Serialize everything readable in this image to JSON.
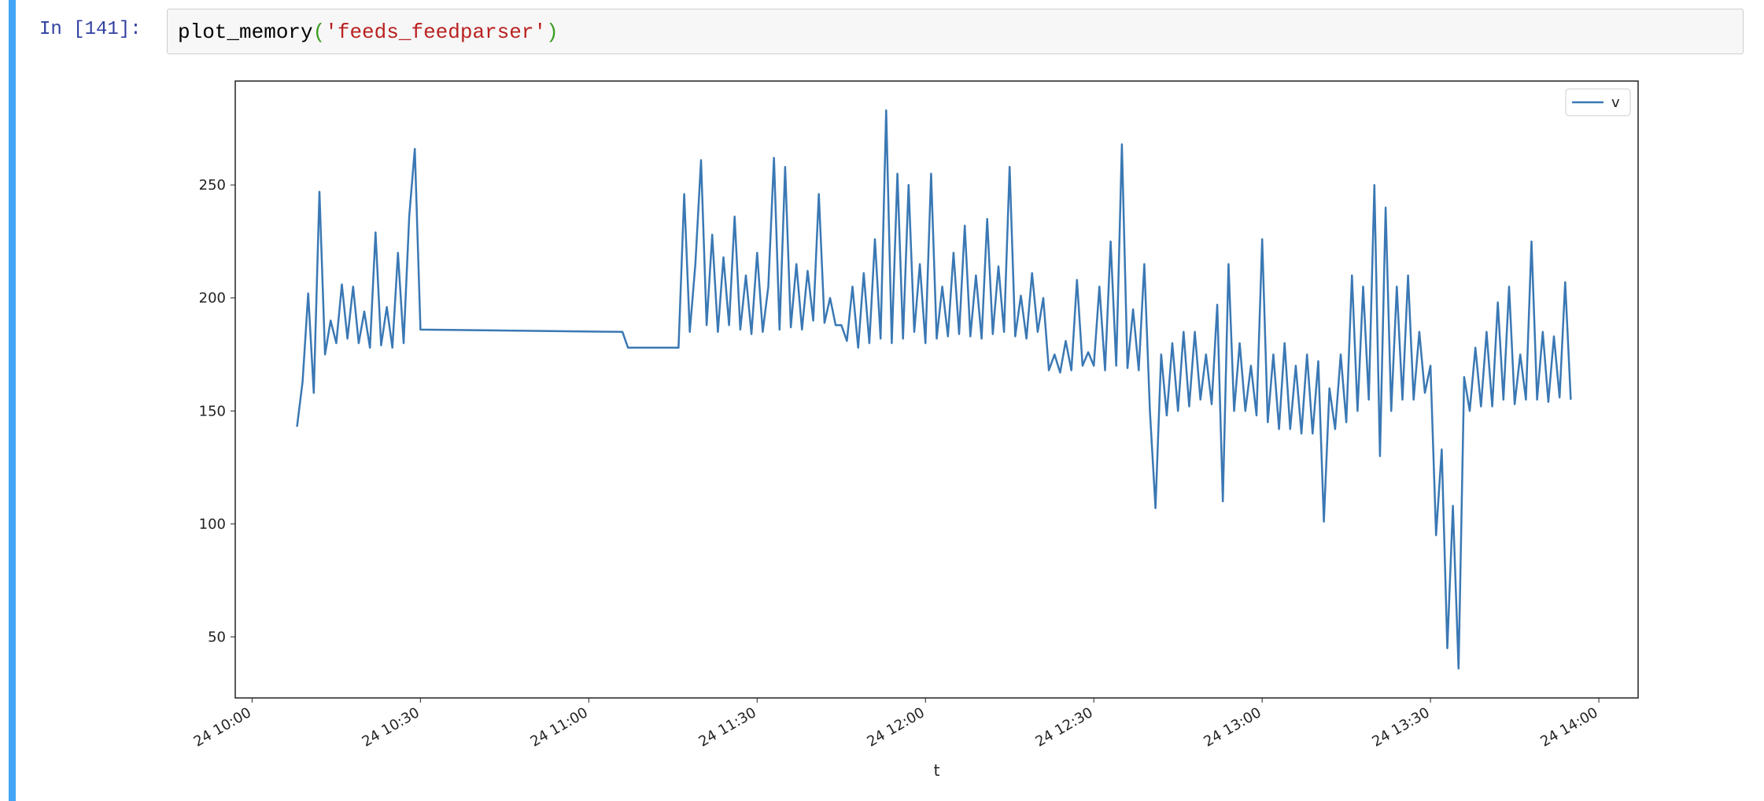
{
  "cell": {
    "prompt": "In [141]:",
    "code": [
      "plot_memory",
      "(",
      "'feeds_feedparser'",
      ")"
    ]
  },
  "chart_data": {
    "type": "line",
    "xlabel": "t",
    "x": [
      "24 10:08",
      "24 10:09",
      "24 10:10",
      "24 10:11",
      "24 10:12",
      "24 10:13",
      "24 10:14",
      "24 10:15",
      "24 10:16",
      "24 10:17",
      "24 10:18",
      "24 10:19",
      "24 10:20",
      "24 10:21",
      "24 10:22",
      "24 10:23",
      "24 10:24",
      "24 10:25",
      "24 10:26",
      "24 10:27",
      "24 10:28",
      "24 10:29",
      "24 10:30",
      "24 11:06",
      "24 11:07",
      "24 11:16",
      "24 11:17",
      "24 11:18",
      "24 11:19",
      "24 11:20",
      "24 11:21",
      "24 11:22",
      "24 11:23",
      "24 11:24",
      "24 11:25",
      "24 11:26",
      "24 11:27",
      "24 11:28",
      "24 11:29",
      "24 11:30",
      "24 11:31",
      "24 11:32",
      "24 11:33",
      "24 11:34",
      "24 11:35",
      "24 11:36",
      "24 11:37",
      "24 11:38",
      "24 11:39",
      "24 11:40",
      "24 11:41",
      "24 11:42",
      "24 11:43",
      "24 11:44",
      "24 11:45",
      "24 11:46",
      "24 11:47",
      "24 11:48",
      "24 11:49",
      "24 11:50",
      "24 11:51",
      "24 11:52",
      "24 11:53",
      "24 11:54",
      "24 11:55",
      "24 11:56",
      "24 11:57",
      "24 11:58",
      "24 11:59",
      "24 12:00",
      "24 12:01",
      "24 12:02",
      "24 12:03",
      "24 12:04",
      "24 12:05",
      "24 12:06",
      "24 12:07",
      "24 12:08",
      "24 12:09",
      "24 12:10",
      "24 12:11",
      "24 12:12",
      "24 12:13",
      "24 12:14",
      "24 12:15",
      "24 12:16",
      "24 12:17",
      "24 12:18",
      "24 12:19",
      "24 12:20",
      "24 12:21",
      "24 12:22",
      "24 12:23",
      "24 12:24",
      "24 12:25",
      "24 12:26",
      "24 12:27",
      "24 12:28",
      "24 12:29",
      "24 12:30",
      "24 12:31",
      "24 12:32",
      "24 12:33",
      "24 12:34",
      "24 12:35",
      "24 12:36",
      "24 12:37",
      "24 12:38",
      "24 12:39",
      "24 12:40",
      "24 12:41",
      "24 12:42",
      "24 12:43",
      "24 12:44",
      "24 12:45",
      "24 12:46",
      "24 12:47",
      "24 12:48",
      "24 12:49",
      "24 12:50",
      "24 12:51",
      "24 12:52",
      "24 12:53",
      "24 12:54",
      "24 12:55",
      "24 12:56",
      "24 12:57",
      "24 12:58",
      "24 12:59",
      "24 13:00",
      "24 13:01",
      "24 13:02",
      "24 13:03",
      "24 13:04",
      "24 13:05",
      "24 13:06",
      "24 13:07",
      "24 13:08",
      "24 13:09",
      "24 13:10",
      "24 13:11",
      "24 13:12",
      "24 13:13",
      "24 13:14",
      "24 13:15",
      "24 13:16",
      "24 13:17",
      "24 13:18",
      "24 13:19",
      "24 13:20",
      "24 13:21",
      "24 13:22",
      "24 13:23",
      "24 13:24",
      "24 13:25",
      "24 13:26",
      "24 13:27",
      "24 13:28",
      "24 13:29",
      "24 13:30",
      "24 13:31",
      "24 13:32",
      "24 13:33",
      "24 13:34",
      "24 13:35",
      "24 13:36",
      "24 13:37",
      "24 13:38",
      "24 13:39",
      "24 13:40",
      "24 13:41",
      "24 13:42",
      "24 13:43",
      "24 13:44",
      "24 13:45",
      "24 13:46",
      "24 13:47",
      "24 13:48",
      "24 13:49",
      "24 13:50",
      "24 13:51",
      "24 13:52",
      "24 13:53",
      "24 13:54",
      "24 13:55"
    ],
    "series": [
      {
        "name": "v",
        "color": "#3a78b4",
        "values": [
          143,
          163,
          202,
          158,
          247,
          175,
          190,
          180,
          206,
          182,
          205,
          180,
          194,
          178,
          229,
          179,
          196,
          178,
          220,
          180,
          236,
          266,
          186,
          185,
          178,
          178,
          246,
          185,
          215,
          261,
          188,
          228,
          185,
          218,
          188,
          236,
          186,
          210,
          184,
          220,
          185,
          205,
          262,
          186,
          258,
          187,
          215,
          186,
          212,
          190,
          246,
          189,
          200,
          188,
          188,
          181,
          205,
          178,
          211,
          180,
          226,
          182,
          283,
          180,
          255,
          182,
          250,
          185,
          215,
          180,
          255,
          182,
          205,
          183,
          220,
          184,
          232,
          183,
          210,
          182,
          235,
          184,
          214,
          185,
          258,
          183,
          201,
          182,
          211,
          185,
          200,
          168,
          175,
          167,
          181,
          168,
          208,
          170,
          176,
          170,
          205,
          168,
          225,
          170,
          268,
          169,
          195,
          168,
          215,
          150,
          107,
          175,
          148,
          180,
          150,
          185,
          152,
          185,
          155,
          175,
          153,
          197,
          110,
          215,
          150,
          180,
          150,
          170,
          148,
          226,
          145,
          175,
          142,
          180,
          142,
          170,
          140,
          175,
          140,
          172,
          101,
          160,
          142,
          175,
          145,
          210,
          150,
          205,
          155,
          250,
          130,
          240,
          150,
          205,
          155,
          210,
          155,
          185,
          158,
          170,
          95,
          133,
          45,
          108,
          36,
          165,
          150,
          178,
          152,
          185,
          152,
          198,
          155,
          205,
          153,
          175,
          155,
          225,
          155,
          185,
          154,
          183,
          156,
          207,
          155
        ]
      }
    ],
    "xlim": [
      "24 09:57",
      "24 14:07"
    ],
    "xticks": [
      "24 10:00",
      "24 10:30",
      "24 11:00",
      "24 11:30",
      "24 12:00",
      "24 12:30",
      "24 13:00",
      "24 13:30",
      "24 14:00"
    ],
    "ylim": [
      23,
      296
    ],
    "yticks": [
      50,
      100,
      150,
      200,
      250
    ],
    "legend": "upper right"
  }
}
